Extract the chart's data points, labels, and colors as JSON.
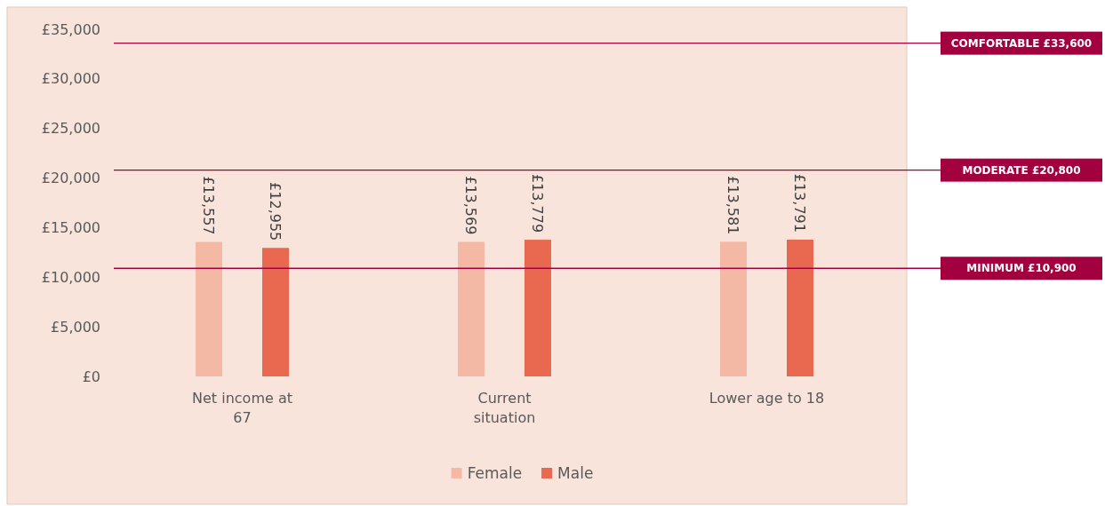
{
  "chart_data": {
    "type": "bar",
    "categories": [
      "Net income at 67",
      "Current situation",
      "Lower age to 18"
    ],
    "series": [
      {
        "name": "Female",
        "color": "#f4b9a4",
        "values": [
          13557,
          13569,
          13581
        ],
        "value_labels": [
          "£13,557",
          "£13,569",
          "£13,581"
        ]
      },
      {
        "name": "Male",
        "color": "#e8694f",
        "values": [
          12955,
          13779,
          13791
        ],
        "value_labels": [
          "£12,955",
          "£13,779",
          "£13,791"
        ]
      }
    ],
    "ylim": [
      0,
      35000
    ],
    "yticks": [
      {
        "value": 0,
        "label": "£0"
      },
      {
        "value": 5000,
        "label": "£5,000"
      },
      {
        "value": 10000,
        "label": "£10,000"
      },
      {
        "value": 15000,
        "label": "£15,000"
      },
      {
        "value": 20000,
        "label": "£20,000"
      },
      {
        "value": 25000,
        "label": "£25,000"
      },
      {
        "value": 30000,
        "label": "£30,000"
      },
      {
        "value": 35000,
        "label": "£35,000"
      }
    ],
    "ref_lines": [
      {
        "axis": "y",
        "value": 33600,
        "label": "COMFORTABLE £33,600",
        "color": "#a3003f"
      },
      {
        "axis": "y",
        "value": 20800,
        "label": "MODERATE £20,800",
        "color": "#a3003f"
      },
      {
        "axis": "y",
        "value": 10900,
        "label": "MINIMUM £10,900",
        "color": "#a3003f"
      }
    ],
    "grid": false,
    "legend": "bottom"
  }
}
